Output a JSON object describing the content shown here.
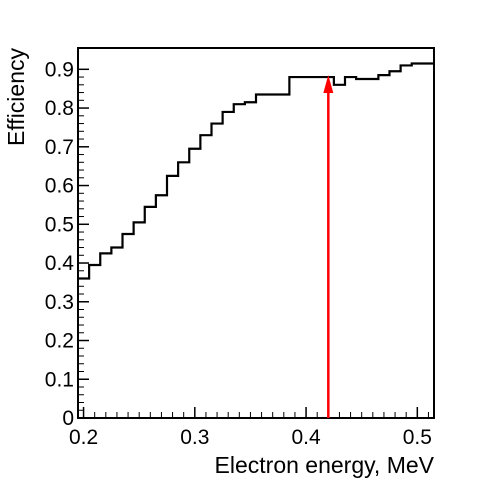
{
  "chart_data": {
    "type": "line",
    "title": "",
    "xlabel": "Electron energy, MeV",
    "ylabel": "Efficiency",
    "xlim": [
      0.195,
      0.515
    ],
    "ylim": [
      0,
      0.955
    ],
    "grid": false,
    "legend": "none",
    "x_ticks": [
      0.2,
      0.3,
      0.4,
      0.5
    ],
    "x_tick_labels": [
      "0.2",
      "0.3",
      "0.4",
      "0.5"
    ],
    "y_ticks": [
      0,
      0.1,
      0.2,
      0.3,
      0.4,
      0.5,
      0.6,
      0.7,
      0.8,
      0.9
    ],
    "y_tick_labels": [
      "0",
      "0.1",
      "0.2",
      "0.3",
      "0.4",
      "0.5",
      "0.6",
      "0.7",
      "0.8",
      "0.9"
    ],
    "histogram_bin_edges": [
      0.195,
      0.205,
      0.215,
      0.225,
      0.235,
      0.245,
      0.255,
      0.265,
      0.275,
      0.285,
      0.295,
      0.305,
      0.315,
      0.325,
      0.335,
      0.345,
      0.355,
      0.365,
      0.375,
      0.385,
      0.395,
      0.405,
      0.415,
      0.425,
      0.435,
      0.445,
      0.455,
      0.465,
      0.475,
      0.485,
      0.495,
      0.505,
      0.515
    ],
    "histogram_values": [
      0.36,
      0.395,
      0.425,
      0.44,
      0.475,
      0.505,
      0.545,
      0.575,
      0.625,
      0.66,
      0.695,
      0.73,
      0.76,
      0.79,
      0.81,
      0.815,
      0.835,
      0.835,
      0.835,
      0.88,
      0.88,
      0.88,
      0.88,
      0.86,
      0.88,
      0.875,
      0.875,
      0.885,
      0.895,
      0.91,
      0.915,
      0.915
    ],
    "line_color": "#000000",
    "annotation": {
      "type": "arrow",
      "color": "#ff0000",
      "x": 0.42,
      "y_from": 0,
      "y_to": 0.88
    }
  }
}
